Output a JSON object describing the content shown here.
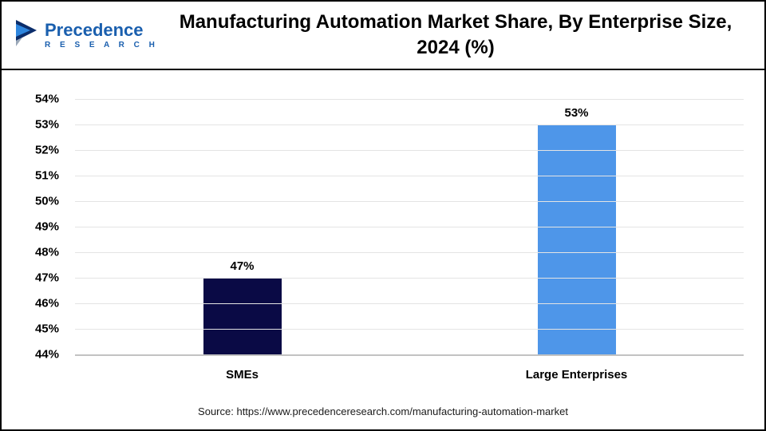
{
  "header": {
    "title": "Manufacturing Automation Market Share, By Enterprise Size, 2024 (%)",
    "logo": {
      "name": "Precedence",
      "subname": "R E S E A R C H",
      "icon": "precedence-triangle-logo",
      "brand_color": "#1a5fae"
    }
  },
  "chart_data": {
    "type": "bar",
    "title": "Manufacturing Automation Market Share, By Enterprise Size, 2024 (%)",
    "categories": [
      "SMEs",
      "Large Enterprises"
    ],
    "values": [
      47,
      53
    ],
    "bar_colors": [
      "#0a0a45",
      "#4e96e9"
    ],
    "data_labels": [
      "47%",
      "53%"
    ],
    "xlabel": "",
    "ylabel": "",
    "ylim": [
      44,
      54
    ],
    "ytick_step": 1,
    "ytick_suffix": "%",
    "grid": true,
    "legend": "none"
  },
  "footer": {
    "source": "Source: https://www.precedenceresearch.com/manufacturing-automation-market"
  }
}
